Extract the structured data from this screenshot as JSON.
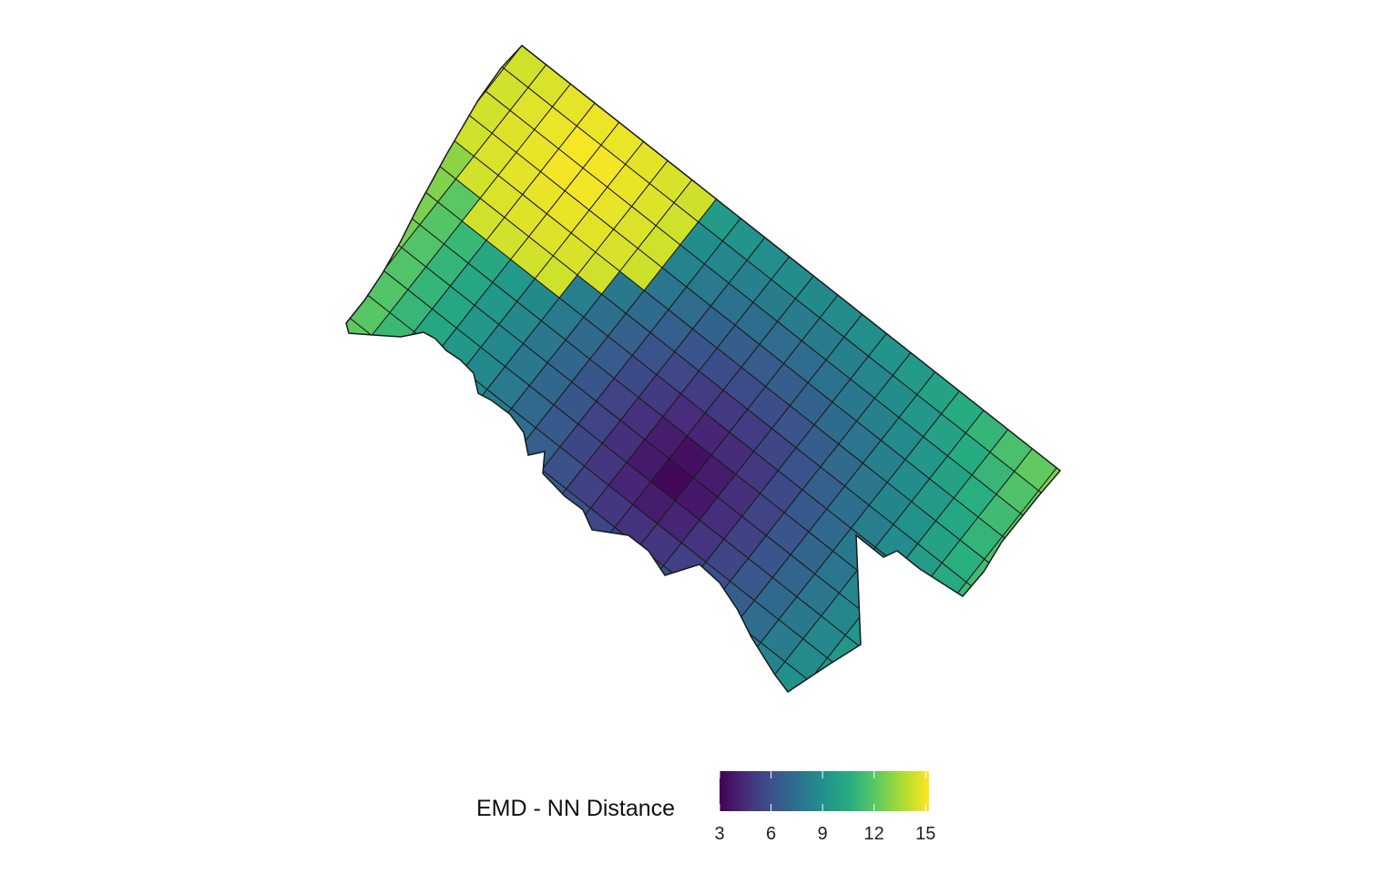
{
  "legend": {
    "title": "EMD - NN Distance",
    "min": 3,
    "max": 15.2,
    "ticks": [
      3,
      6,
      9,
      12,
      15
    ],
    "tick_labels": [
      "3",
      "6",
      "9",
      "12",
      "15"
    ]
  },
  "palette": {
    "scale": "viridis",
    "stops": [
      "#440154",
      "#472d7b",
      "#3b528b",
      "#2c728e",
      "#21918c",
      "#28ae80",
      "#5ec962",
      "#addc30",
      "#fde725"
    ],
    "outline": "#1a1a1a",
    "background": "#ffffff"
  }
}
